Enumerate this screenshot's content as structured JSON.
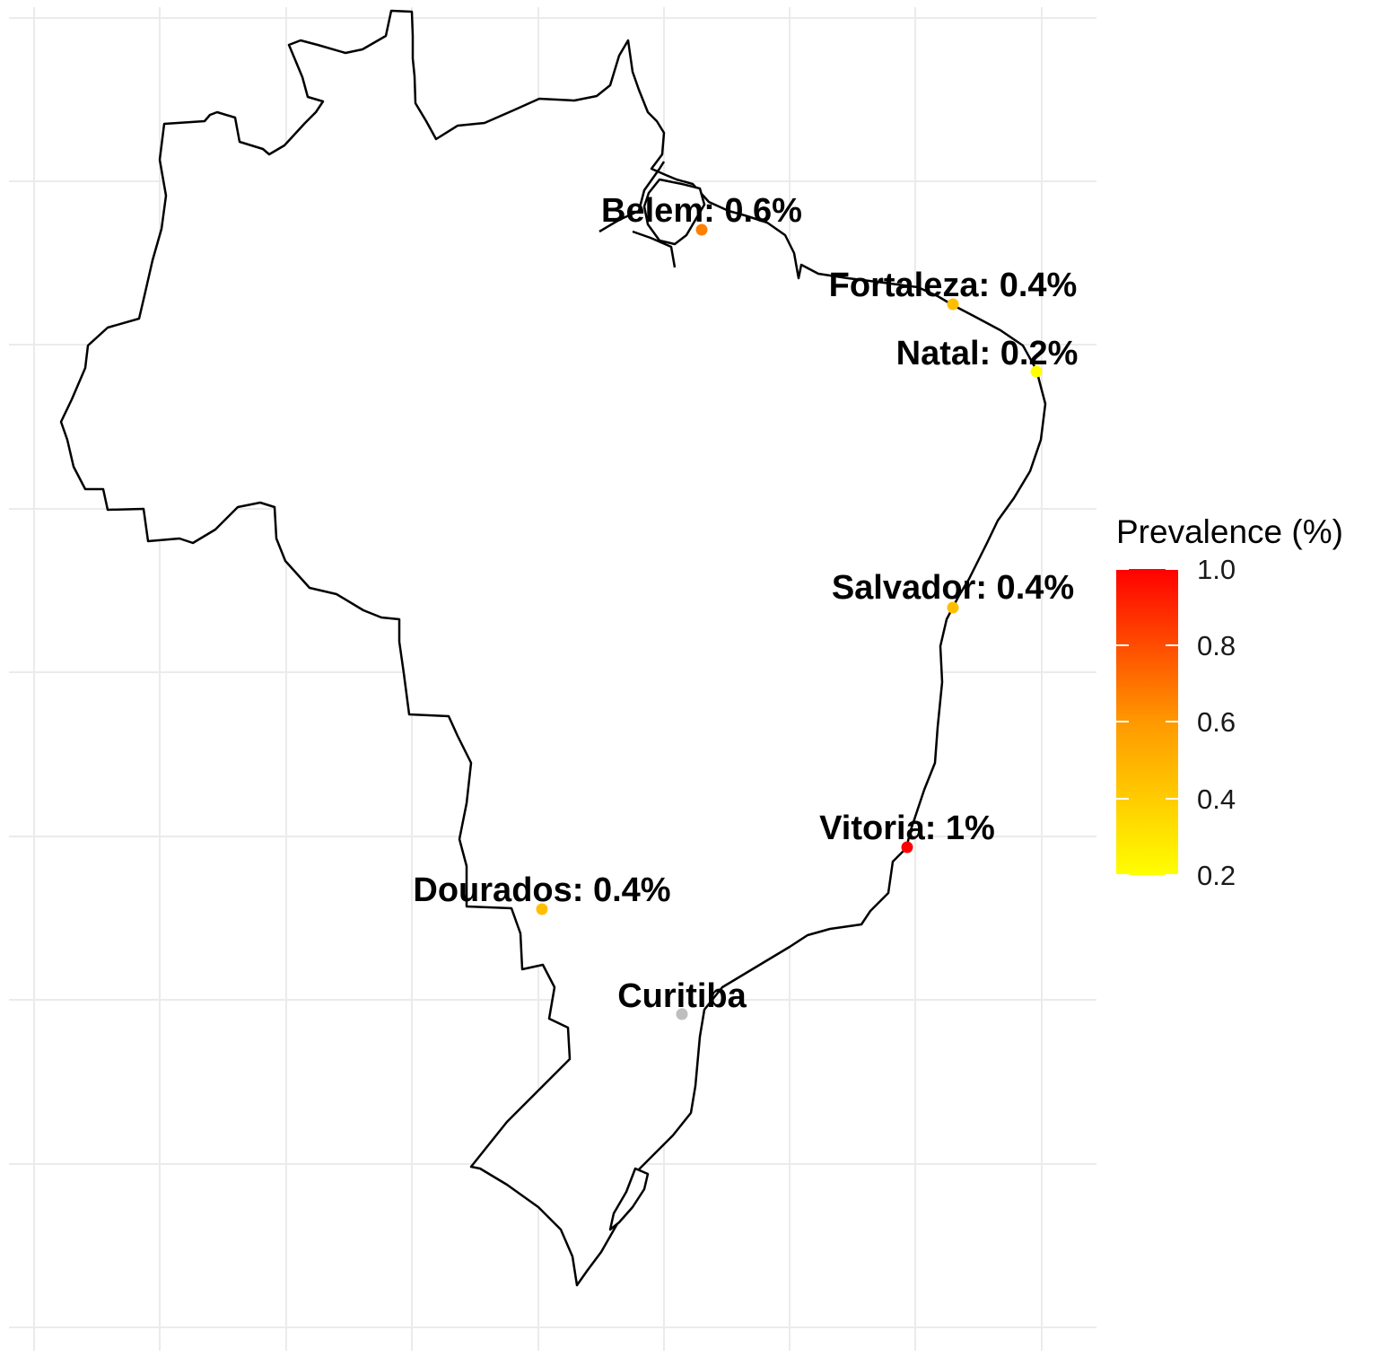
{
  "map": {
    "region": "Brazil",
    "grid": "on",
    "border_color": "#000000",
    "background": "#ffffff",
    "missing_color": "#bebebe",
    "cities": [
      {
        "name": "Belem",
        "label": "Belem: 0.6%",
        "prevalence": 0.6,
        "lon": -48.5,
        "lat": -1.46
      },
      {
        "name": "Fortaleza",
        "label": "Fortaleza: 0.4%",
        "prevalence": 0.4,
        "lon": -38.54,
        "lat": -3.73
      },
      {
        "name": "Natal",
        "label": "Natal: 0.2%",
        "prevalence": 0.2,
        "lon": -35.2,
        "lat": -5.79
      },
      {
        "name": "Salvador",
        "label": "Salvador: 0.4%",
        "prevalence": 0.4,
        "lon": -38.5,
        "lat": -12.97
      },
      {
        "name": "Vitoria",
        "label": "Vitoria: 1%",
        "prevalence": 1.0,
        "lon": -40.3,
        "lat": -20.32
      },
      {
        "name": "Dourados",
        "label": "Dourados: 0.4%",
        "prevalence": 0.4,
        "lon": -54.8,
        "lat": -22.22
      },
      {
        "name": "Curitiba",
        "label": "Curitiba",
        "prevalence": null,
        "lon": -49.27,
        "lat": -25.43
      }
    ]
  },
  "legend": {
    "title": "Prevalence (%)",
    "ticks": [
      "1.0",
      "0.8",
      "0.6",
      "0.4",
      "0.2"
    ],
    "range": [
      0.2,
      1.0
    ],
    "colors": {
      "low": "#ffff00",
      "high": "#ff0000"
    },
    "placement": "right"
  }
}
